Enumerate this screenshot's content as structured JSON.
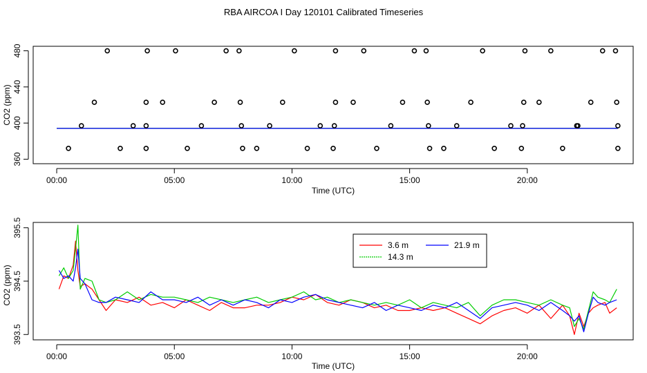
{
  "figure": {
    "title": "RBA AIRCOA I  Day 120101  Calibrated Timeseries"
  },
  "chart_data": [
    {
      "type": "scatter",
      "xlabel": "Time (UTC)",
      "ylabel": "CO2 (ppm)",
      "xlim": [
        -1.0,
        24.5
      ],
      "ylim": [
        355,
        485
      ],
      "xtick_values": [
        0,
        5,
        10,
        15,
        20
      ],
      "xtick_labels": [
        "00:00",
        "05:00",
        "10:00",
        "15:00",
        "20:00"
      ],
      "ytick_values": [
        360,
        400,
        440,
        480
      ],
      "ytick_labels": [
        "360",
        "400",
        "440",
        "480"
      ],
      "grid": false,
      "marker_color": "#000000",
      "points_y480": [
        2.15,
        3.85,
        5.05,
        7.2,
        7.75,
        10.1,
        11.85,
        13.05,
        15.2,
        15.7,
        18.1,
        19.9,
        21.0,
        23.2,
        23.75
      ],
      "points_y423": [
        1.6,
        3.8,
        4.5,
        6.7,
        7.8,
        9.6,
        11.85,
        12.6,
        14.7,
        15.75,
        17.6,
        19.85,
        20.5,
        22.7,
        23.8
      ],
      "points_y397": [
        1.05,
        3.25,
        3.8,
        6.15,
        7.85,
        9.05,
        11.2,
        11.8,
        14.2,
        15.8,
        17.0,
        19.3,
        19.8,
        22.1,
        22.15,
        23.85
      ],
      "points_y372": [
        0.5,
        2.7,
        3.8,
        5.55,
        7.9,
        8.5,
        10.65,
        11.75,
        13.6,
        15.85,
        16.45,
        18.6,
        19.75,
        21.5,
        23.85
      ],
      "flat_series": [
        {
          "name": "3.6 m",
          "color": "#ff0000",
          "value": 394.1
        },
        {
          "name": "14.3 m",
          "color": "#00cc00",
          "value": 394.2
        },
        {
          "name": "21.9 m",
          "color": "#0000ff",
          "value": 394.1
        }
      ]
    },
    {
      "type": "line",
      "xlabel": "Time (UTC)",
      "ylabel": "CO2 (ppm)",
      "xlim": [
        -1.0,
        24.5
      ],
      "ylim": [
        393.4,
        395.6
      ],
      "xtick_values": [
        0,
        5,
        10,
        15,
        20
      ],
      "xtick_labels": [
        "00:00",
        "05:00",
        "10:00",
        "15:00",
        "20:00"
      ],
      "ytick_values": [
        393.5,
        394.5,
        395.5
      ],
      "ytick_labels": [
        "393.5",
        "394.5",
        "395.5"
      ],
      "grid": false,
      "legend_position": "top-right",
      "series": [
        {
          "name": "3.6 m",
          "color": "#ff0000",
          "x": [
            0.1,
            0.3,
            0.5,
            0.7,
            0.8,
            0.9,
            1.0,
            1.2,
            1.5,
            1.8,
            2.1,
            2.5,
            3.0,
            3.5,
            4.0,
            4.5,
            5.0,
            5.5,
            6.0,
            6.5,
            7.0,
            7.5,
            8.0,
            8.5,
            9.0,
            9.5,
            10.0,
            10.5,
            11.0,
            11.5,
            12.0,
            12.5,
            13.0,
            13.5,
            14.0,
            14.5,
            15.0,
            15.5,
            16.0,
            16.5,
            17.0,
            17.5,
            18.0,
            18.5,
            19.0,
            19.5,
            20.0,
            20.5,
            21.0,
            21.5,
            21.8,
            22.0,
            22.2,
            22.4,
            22.6,
            22.8,
            23.0,
            23.3,
            23.5,
            23.8
          ],
          "values": [
            394.35,
            394.6,
            394.55,
            394.8,
            395.25,
            394.7,
            394.4,
            394.45,
            394.35,
            394.15,
            393.95,
            394.15,
            394.1,
            394.2,
            394.05,
            394.1,
            394.0,
            394.15,
            394.05,
            393.95,
            394.1,
            394.0,
            394.0,
            394.05,
            394.05,
            394.1,
            394.2,
            394.15,
            394.25,
            394.1,
            394.05,
            394.15,
            394.1,
            394.0,
            394.05,
            393.95,
            393.95,
            394.0,
            393.95,
            394.0,
            393.9,
            393.8,
            393.7,
            393.85,
            393.95,
            394.0,
            393.9,
            394.05,
            393.8,
            394.05,
            393.85,
            393.5,
            393.9,
            393.65,
            393.9,
            394.0,
            394.05,
            394.1,
            393.9,
            394.0
          ]
        },
        {
          "name": "14.3 m",
          "color": "#00cc00",
          "x": [
            0.1,
            0.3,
            0.5,
            0.7,
            0.8,
            0.9,
            1.0,
            1.2,
            1.5,
            1.8,
            2.1,
            2.5,
            3.0,
            3.5,
            4.0,
            4.5,
            5.0,
            5.5,
            6.0,
            6.5,
            7.0,
            7.5,
            8.0,
            8.5,
            9.0,
            9.5,
            10.0,
            10.5,
            11.0,
            11.5,
            12.0,
            12.5,
            13.0,
            13.5,
            14.0,
            14.5,
            15.0,
            15.5,
            16.0,
            16.5,
            17.0,
            17.5,
            18.0,
            18.5,
            19.0,
            19.5,
            20.0,
            20.5,
            21.0,
            21.5,
            21.8,
            22.0,
            22.2,
            22.4,
            22.6,
            22.8,
            23.0,
            23.3,
            23.5,
            23.8
          ],
          "values": [
            394.6,
            394.75,
            394.55,
            394.7,
            395.1,
            395.55,
            394.35,
            394.55,
            394.5,
            394.15,
            394.1,
            394.15,
            394.3,
            394.15,
            394.25,
            394.2,
            394.2,
            394.15,
            394.1,
            394.2,
            394.15,
            394.1,
            394.15,
            394.2,
            394.1,
            394.15,
            394.2,
            394.3,
            394.15,
            394.2,
            394.1,
            394.15,
            394.1,
            394.05,
            394.1,
            394.05,
            394.15,
            394.0,
            394.1,
            394.05,
            394.0,
            394.1,
            393.85,
            394.05,
            394.15,
            394.15,
            394.1,
            394.05,
            394.15,
            394.05,
            394.0,
            393.65,
            393.8,
            393.6,
            393.95,
            394.3,
            394.2,
            394.15,
            394.1,
            394.35
          ]
        },
        {
          "name": "21.9 m",
          "color": "#0000ff",
          "x": [
            0.1,
            0.3,
            0.5,
            0.7,
            0.8,
            0.9,
            1.0,
            1.2,
            1.5,
            1.8,
            2.1,
            2.5,
            3.0,
            3.5,
            4.0,
            4.5,
            5.0,
            5.5,
            6.0,
            6.5,
            7.0,
            7.5,
            8.0,
            8.5,
            9.0,
            9.5,
            10.0,
            10.5,
            11.0,
            11.5,
            12.0,
            12.5,
            13.0,
            13.5,
            14.0,
            14.5,
            15.0,
            15.5,
            16.0,
            16.5,
            17.0,
            17.5,
            18.0,
            18.5,
            19.0,
            19.5,
            20.0,
            20.5,
            21.0,
            21.5,
            21.8,
            22.0,
            22.2,
            22.4,
            22.6,
            22.8,
            23.0,
            23.3,
            23.5,
            23.8
          ],
          "values": [
            394.7,
            394.55,
            394.6,
            394.5,
            394.75,
            395.1,
            394.55,
            394.45,
            394.15,
            394.1,
            394.1,
            394.2,
            394.15,
            394.1,
            394.3,
            394.15,
            394.15,
            394.1,
            394.2,
            394.05,
            394.15,
            394.05,
            394.15,
            394.1,
            394.0,
            394.15,
            394.1,
            394.2,
            394.25,
            394.15,
            394.1,
            394.05,
            394.0,
            394.1,
            393.95,
            394.05,
            394.0,
            393.95,
            394.05,
            394.0,
            394.1,
            393.95,
            393.8,
            394.0,
            394.05,
            394.1,
            394.05,
            393.95,
            394.1,
            393.95,
            393.85,
            393.75,
            393.85,
            393.55,
            393.9,
            394.2,
            394.1,
            394.05,
            394.1,
            394.15
          ]
        }
      ]
    }
  ]
}
